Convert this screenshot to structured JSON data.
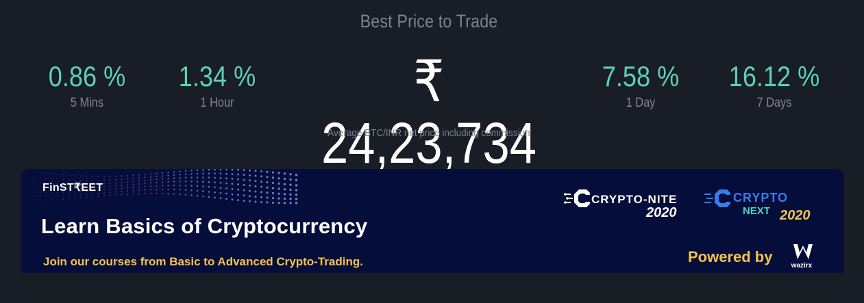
{
  "header": {
    "title": "Best Price to Trade"
  },
  "stats": [
    {
      "value": "0.86 %",
      "label": "5 Mins"
    },
    {
      "value": "1.34 %",
      "label": "1 Hour"
    },
    {
      "value": "7.58 %",
      "label": "1 Day"
    },
    {
      "value": "16.12 %",
      "label": "7 Days"
    }
  ],
  "price": {
    "value": "₹ 24,23,734",
    "caption": "Average BTC/INR net price including commission"
  },
  "banner": {
    "brand": "FinST₹EET",
    "headline": "Learn Basics of Cryptocurrency",
    "subtext": "Join our courses from Basic to Advanced Crypto-Trading.",
    "logo1_text": "CRYPTO-NITE",
    "logo1_year": "2020",
    "logo2_text": "CRYPTO",
    "logo2_sub": "NEXT",
    "logo2_year": "2020",
    "powered_by": "Powered by",
    "partner": "wazirx",
    "colors": {
      "background": "#050e3a",
      "accent": "#f6c34a",
      "teal": "#5cd0bb"
    }
  }
}
